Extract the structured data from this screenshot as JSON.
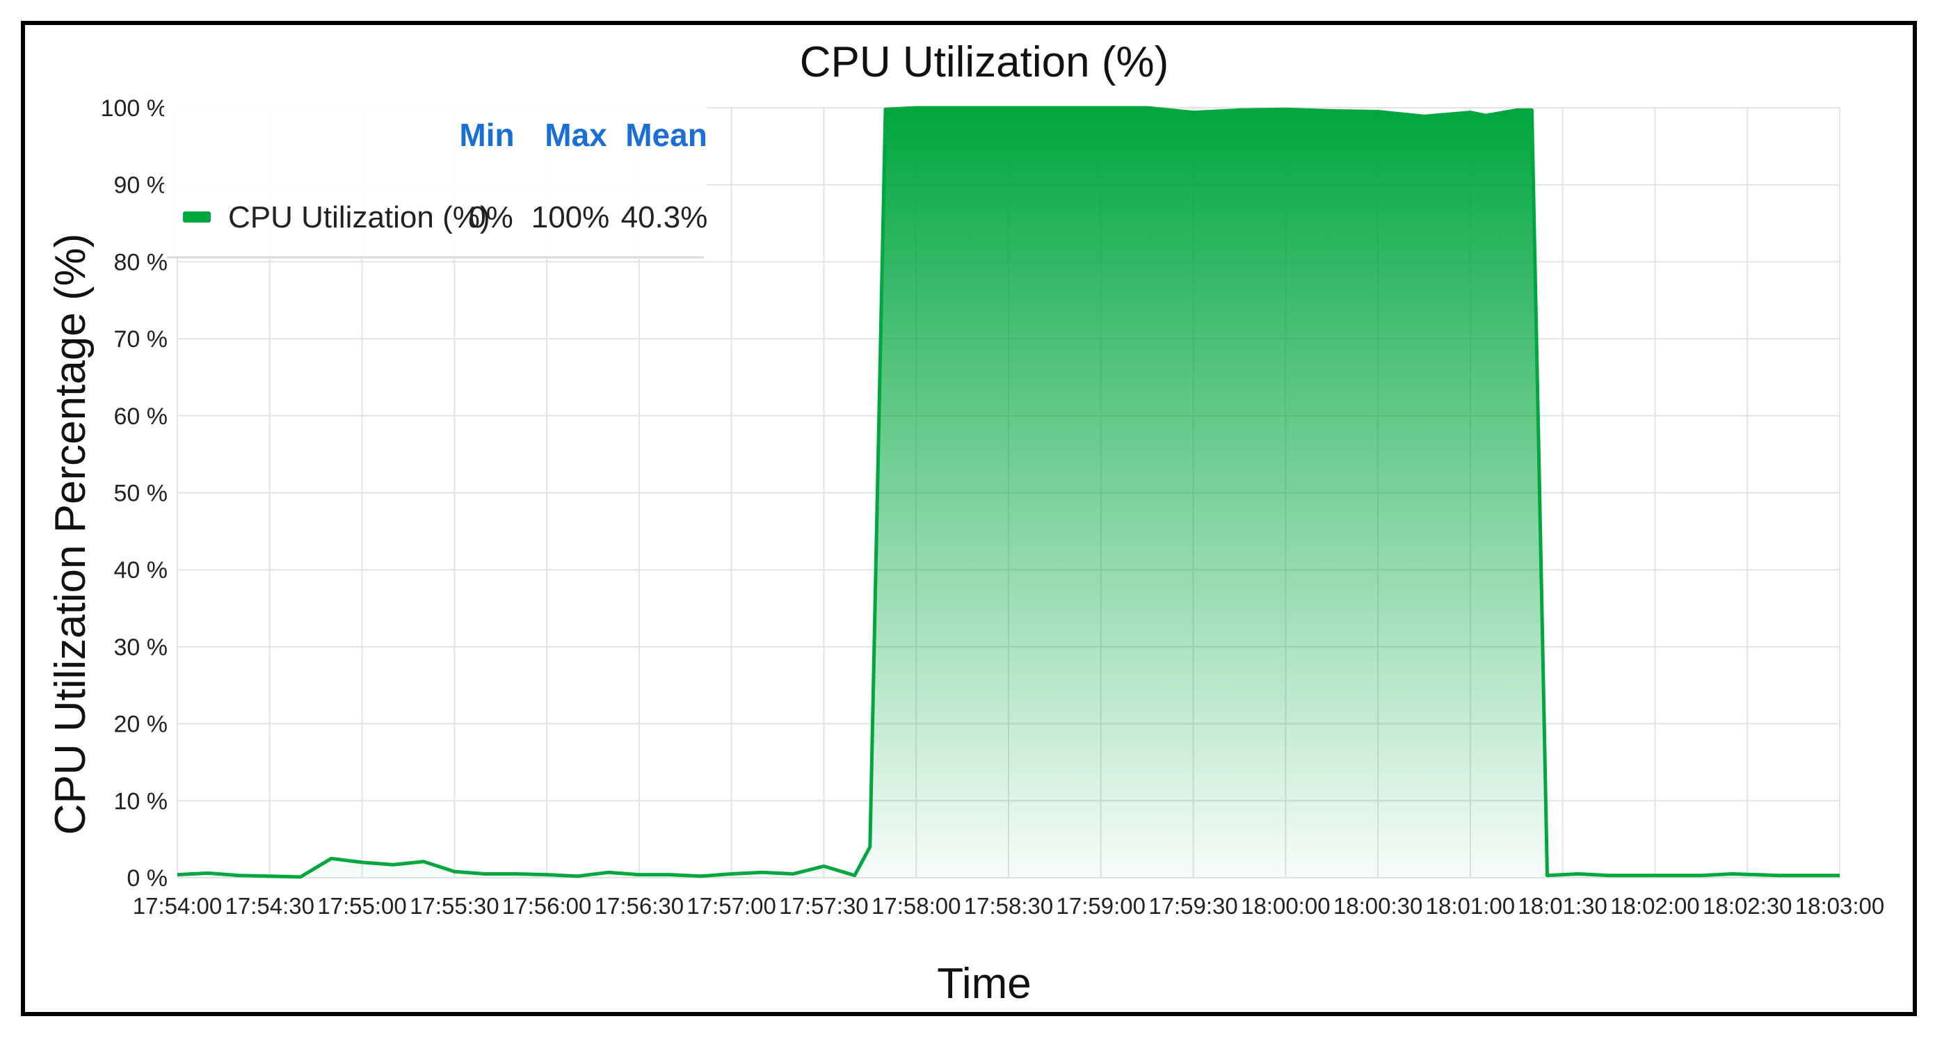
{
  "chart_data": {
    "type": "area",
    "title": "CPU Utilization (%)",
    "xlabel": "Time",
    "ylabel": "CPU Utilization Percentage (%)",
    "ylim": [
      0,
      100
    ],
    "yticks": [
      "0 %",
      "10 %",
      "20 %",
      "30 %",
      "40 %",
      "50 %",
      "60 %",
      "70 %",
      "80 %",
      "90 %",
      "100 %"
    ],
    "xticks": [
      "17:54:00",
      "17:54:30",
      "17:55:00",
      "17:55:30",
      "17:56:00",
      "17:56:30",
      "17:57:00",
      "17:57:30",
      "17:58:00",
      "17:58:30",
      "17:59:00",
      "17:59:30",
      "18:00:00",
      "18:00:30",
      "18:01:00",
      "18:01:30",
      "18:02:00",
      "18:02:30",
      "18:03:00"
    ],
    "grid": true,
    "legend_position": "top-left",
    "series": [
      {
        "name": "CPU Utilization (%)",
        "color": "#00a63e",
        "stats": {
          "min": "0%",
          "max": "100%",
          "mean": "40.3%"
        },
        "points": [
          [
            "17:54:00",
            0.4
          ],
          [
            "17:54:10",
            0.6
          ],
          [
            "17:54:20",
            0.3
          ],
          [
            "17:54:30",
            0.2
          ],
          [
            "17:54:40",
            0.1
          ],
          [
            "17:54:50",
            2.5
          ],
          [
            "17:55:00",
            2.0
          ],
          [
            "17:55:10",
            1.7
          ],
          [
            "17:55:20",
            2.1
          ],
          [
            "17:55:30",
            0.8
          ],
          [
            "17:55:40",
            0.5
          ],
          [
            "17:55:50",
            0.5
          ],
          [
            "17:56:00",
            0.4
          ],
          [
            "17:56:10",
            0.2
          ],
          [
            "17:56:20",
            0.7
          ],
          [
            "17:56:30",
            0.4
          ],
          [
            "17:56:40",
            0.4
          ],
          [
            "17:56:50",
            0.2
          ],
          [
            "17:57:00",
            0.5
          ],
          [
            "17:57:10",
            0.7
          ],
          [
            "17:57:20",
            0.5
          ],
          [
            "17:57:30",
            1.5
          ],
          [
            "17:57:40",
            0.3
          ],
          [
            "17:57:45",
            4.0
          ],
          [
            "17:57:50",
            99.8
          ],
          [
            "17:58:00",
            100
          ],
          [
            "17:58:30",
            100
          ],
          [
            "17:59:00",
            100
          ],
          [
            "17:59:15",
            100
          ],
          [
            "17:59:30",
            99.4
          ],
          [
            "17:59:45",
            99.7
          ],
          [
            "18:00:00",
            99.8
          ],
          [
            "18:00:15",
            99.6
          ],
          [
            "18:00:30",
            99.5
          ],
          [
            "18:00:45",
            98.9
          ],
          [
            "18:01:00",
            99.4
          ],
          [
            "18:01:05",
            99.0
          ],
          [
            "18:01:15",
            99.7
          ],
          [
            "18:01:20",
            99.7
          ],
          [
            "18:01:22",
            60.0
          ],
          [
            "18:01:25",
            0.3
          ],
          [
            "18:01:35",
            0.5
          ],
          [
            "18:01:45",
            0.3
          ],
          [
            "18:02:00",
            0.3
          ],
          [
            "18:02:15",
            0.3
          ],
          [
            "18:02:25",
            0.5
          ],
          [
            "18:02:40",
            0.3
          ],
          [
            "18:03:00",
            0.3
          ]
        ]
      }
    ],
    "legend": {
      "headers": {
        "min": "Min",
        "max": "Max",
        "mean": "Mean"
      }
    }
  }
}
